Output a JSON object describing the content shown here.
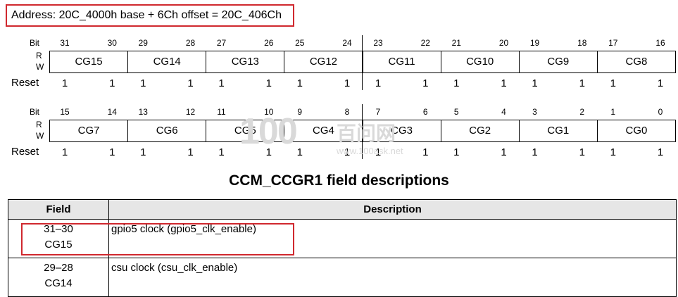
{
  "address_text": "Address: 20C_4000h base + 6Ch offset = 20C_406Ch",
  "labels": {
    "bit": "Bit",
    "r": "R",
    "w": "W",
    "reset": "Reset"
  },
  "upper_register": {
    "bits": [
      "31",
      "30",
      "29",
      "28",
      "27",
      "26",
      "25",
      "24",
      "23",
      "22",
      "21",
      "20",
      "19",
      "18",
      "17",
      "16"
    ],
    "fields": [
      "CG15",
      "CG14",
      "CG13",
      "CG12",
      "CG11",
      "CG10",
      "CG9",
      "CG8"
    ],
    "reset": [
      "1",
      "1",
      "1",
      "1",
      "1",
      "1",
      "1",
      "1",
      "1",
      "1",
      "1",
      "1",
      "1",
      "1",
      "1",
      "1"
    ]
  },
  "lower_register": {
    "bits": [
      "15",
      "14",
      "13",
      "12",
      "11",
      "10",
      "9",
      "8",
      "7",
      "6",
      "5",
      "4",
      "3",
      "2",
      "1",
      "0"
    ],
    "fields": [
      "CG7",
      "CG6",
      "CG5",
      "CG4",
      "CG3",
      "CG2",
      "CG1",
      "CG0"
    ],
    "reset": [
      "1",
      "1",
      "1",
      "1",
      "1",
      "1",
      "1",
      "1",
      "1",
      "1",
      "1",
      "1",
      "1",
      "1",
      "1",
      "1"
    ]
  },
  "watermark": {
    "logo": "100",
    "cn": "百问网",
    "url": "www.100ask.net"
  },
  "table_title": "CCM_CCGR1 field descriptions",
  "table": {
    "headers": {
      "field": "Field",
      "description": "Description"
    },
    "rows": [
      {
        "bits": "31–30",
        "name": "CG15",
        "description": "gpio5 clock (gpio5_clk_enable)"
      },
      {
        "bits": "29–28",
        "name": "CG14",
        "description": "csu clock (csu_clk_enable)"
      }
    ]
  }
}
